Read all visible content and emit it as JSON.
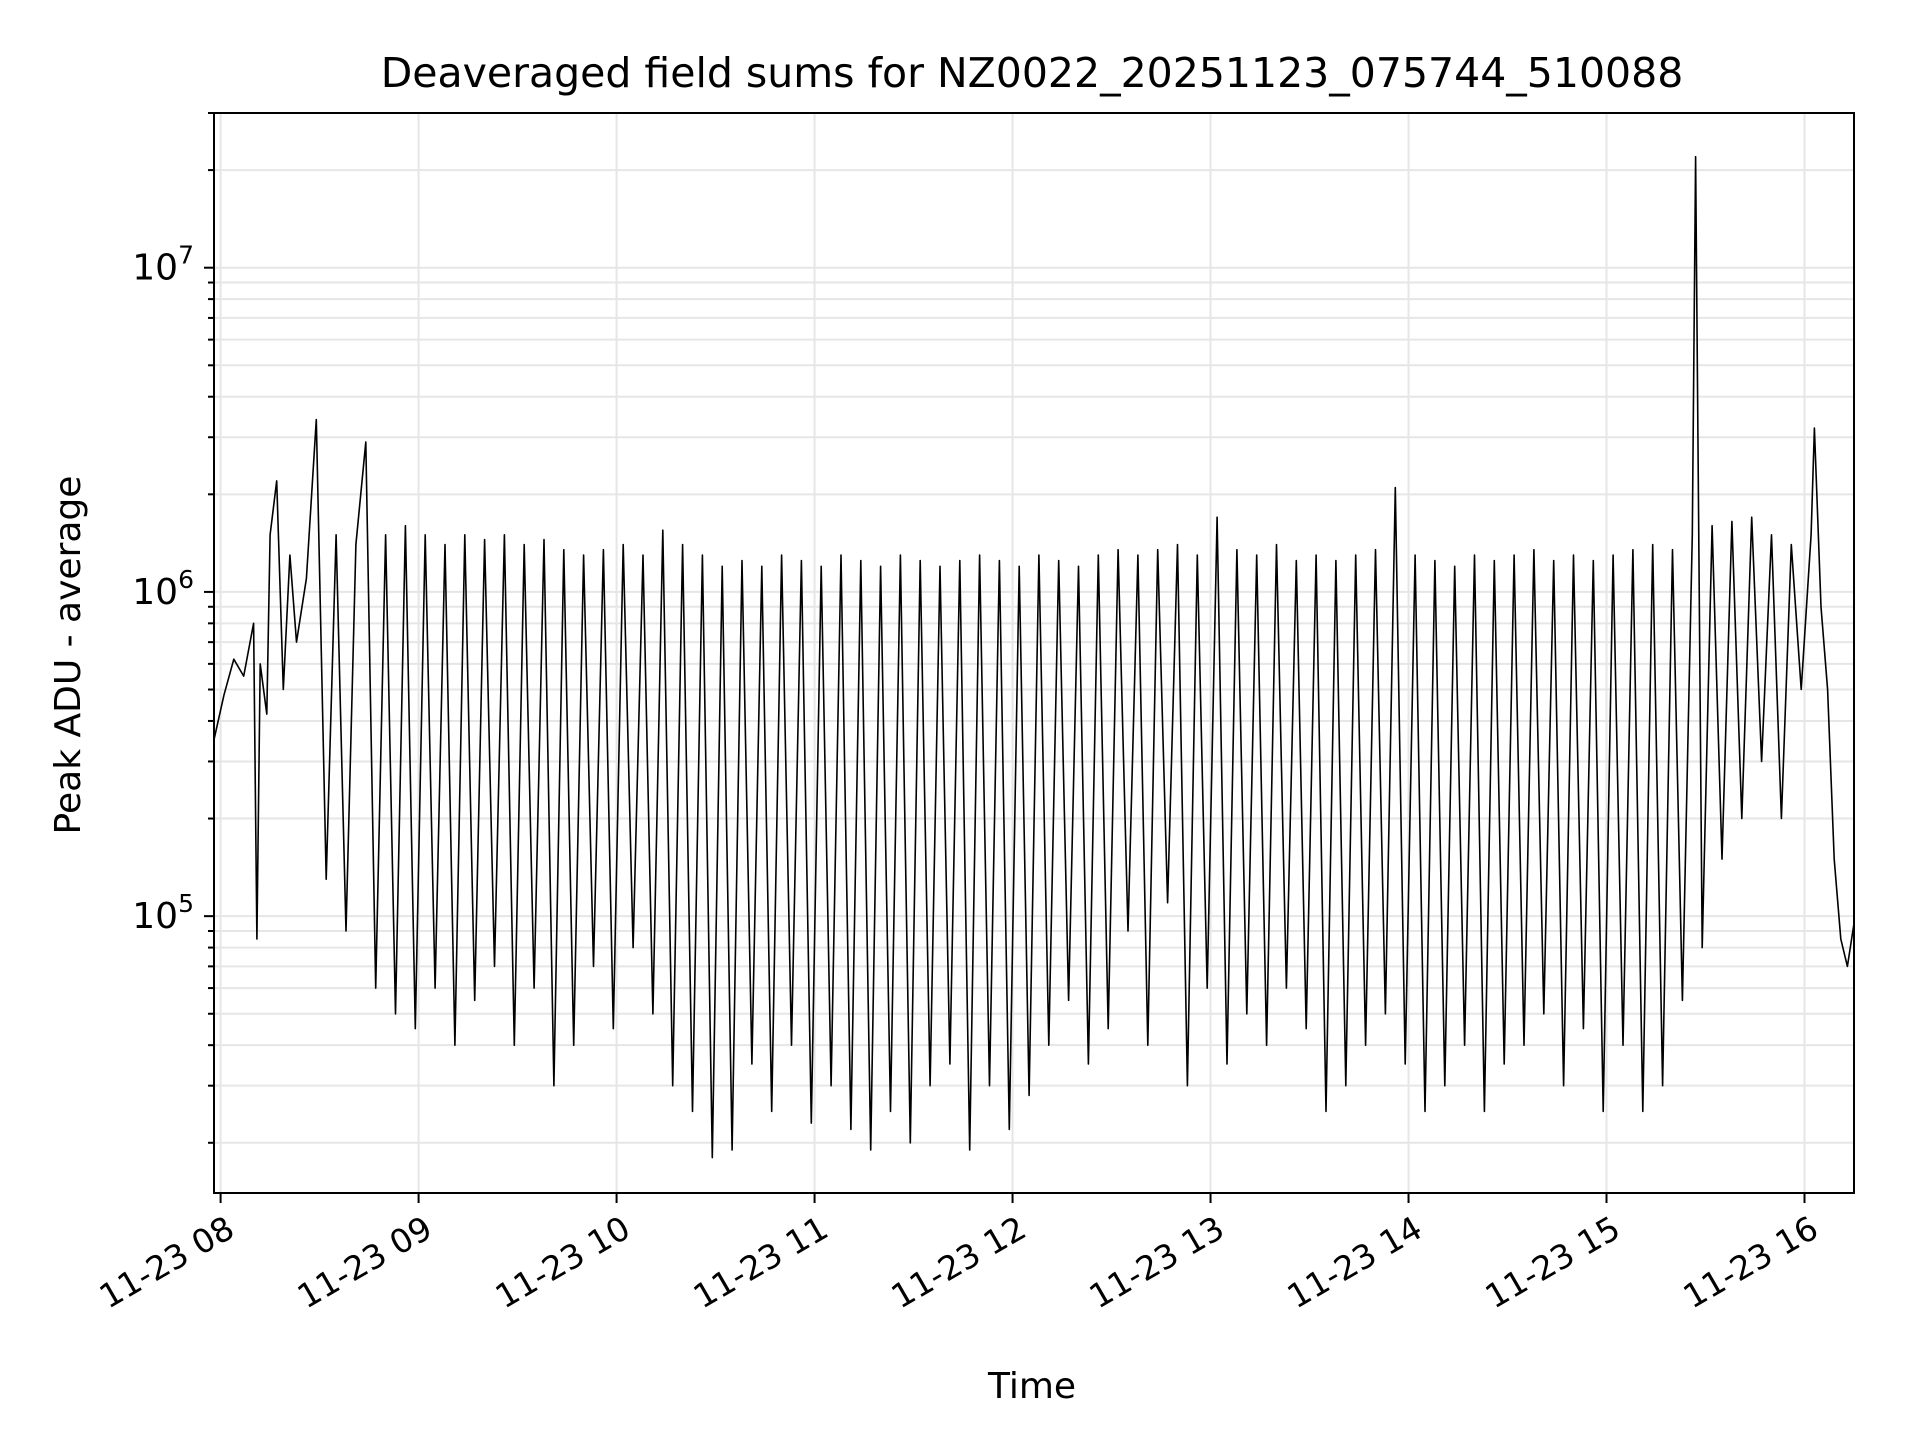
{
  "chart_data": {
    "type": "line",
    "title": "Deaveraged field sums for NZ0022_20251123_075744_510088",
    "xlabel": "Time",
    "ylabel": "Peak ADU - average",
    "yscale": "log",
    "ylim": [
      14000,
      30000000
    ],
    "xlim": [
      "2025-11-23 07:58",
      "2025-11-23 16:15"
    ],
    "grid": true,
    "line_color": "#000000",
    "grid_color": "#e6e6e6",
    "x_ticks": [
      {
        "label": "11-23 08",
        "time": "2025-11-23 08:00"
      },
      {
        "label": "11-23 09",
        "time": "2025-11-23 09:00"
      },
      {
        "label": "11-23 10",
        "time": "2025-11-23 10:00"
      },
      {
        "label": "11-23 11",
        "time": "2025-11-23 11:00"
      },
      {
        "label": "11-23 12",
        "time": "2025-11-23 12:00"
      },
      {
        "label": "11-23 13",
        "time": "2025-11-23 13:00"
      },
      {
        "label": "11-23 14",
        "time": "2025-11-23 14:00"
      },
      {
        "label": "11-23 15",
        "time": "2025-11-23 15:00"
      },
      {
        "label": "11-23 16",
        "time": "2025-11-23 16:00"
      }
    ],
    "y_ticks": [
      {
        "value": 100000,
        "mantissa": "10",
        "exponent": "5"
      },
      {
        "value": 1000000,
        "mantissa": "10",
        "exponent": "6"
      },
      {
        "value": 10000000,
        "mantissa": "10",
        "exponent": "7"
      }
    ],
    "series": [
      {
        "x": [
          "2025-11-23 07:58",
          "2025-11-23 08:01",
          "2025-11-23 08:04",
          "2025-11-23 08:07",
          "2025-11-23 08:10",
          "2025-11-23 08:11",
          "2025-11-23 08:12",
          "2025-11-23 08:14",
          "2025-11-23 08:15",
          "2025-11-23 08:17",
          "2025-11-23 08:19",
          "2025-11-23 08:21",
          "2025-11-23 08:23",
          "2025-11-23 08:26",
          "2025-11-23 08:29",
          "2025-11-23 08:32",
          "2025-11-23 08:35",
          "2025-11-23 08:38",
          "2025-11-23 08:41",
          "2025-11-23 08:44",
          "2025-11-23 08:47",
          "2025-11-23 08:50",
          "2025-11-23 08:53",
          "2025-11-23 08:56",
          "2025-11-23 08:59",
          "2025-11-23 09:02",
          "2025-11-23 09:05",
          "2025-11-23 09:08",
          "2025-11-23 09:11",
          "2025-11-23 09:14",
          "2025-11-23 09:17",
          "2025-11-23 09:20",
          "2025-11-23 09:23",
          "2025-11-23 09:26",
          "2025-11-23 09:29",
          "2025-11-23 09:32",
          "2025-11-23 09:35",
          "2025-11-23 09:38",
          "2025-11-23 09:41",
          "2025-11-23 09:44",
          "2025-11-23 09:47",
          "2025-11-23 09:50",
          "2025-11-23 09:53",
          "2025-11-23 09:56",
          "2025-11-23 09:59",
          "2025-11-23 10:02",
          "2025-11-23 10:05",
          "2025-11-23 10:08",
          "2025-11-23 10:11",
          "2025-11-23 10:14",
          "2025-11-23 10:17",
          "2025-11-23 10:20",
          "2025-11-23 10:23",
          "2025-11-23 10:26",
          "2025-11-23 10:29",
          "2025-11-23 10:32",
          "2025-11-23 10:35",
          "2025-11-23 10:38",
          "2025-11-23 10:41",
          "2025-11-23 10:44",
          "2025-11-23 10:47",
          "2025-11-23 10:50",
          "2025-11-23 10:53",
          "2025-11-23 10:56",
          "2025-11-23 10:59",
          "2025-11-23 11:02",
          "2025-11-23 11:05",
          "2025-11-23 11:08",
          "2025-11-23 11:11",
          "2025-11-23 11:14",
          "2025-11-23 11:17",
          "2025-11-23 11:20",
          "2025-11-23 11:23",
          "2025-11-23 11:26",
          "2025-11-23 11:29",
          "2025-11-23 11:32",
          "2025-11-23 11:35",
          "2025-11-23 11:38",
          "2025-11-23 11:41",
          "2025-11-23 11:44",
          "2025-11-23 11:47",
          "2025-11-23 11:50",
          "2025-11-23 11:53",
          "2025-11-23 11:56",
          "2025-11-23 11:59",
          "2025-11-23 12:02",
          "2025-11-23 12:05",
          "2025-11-23 12:08",
          "2025-11-23 12:11",
          "2025-11-23 12:14",
          "2025-11-23 12:17",
          "2025-11-23 12:20",
          "2025-11-23 12:23",
          "2025-11-23 12:26",
          "2025-11-23 12:29",
          "2025-11-23 12:32",
          "2025-11-23 12:35",
          "2025-11-23 12:38",
          "2025-11-23 12:41",
          "2025-11-23 12:44",
          "2025-11-23 12:47",
          "2025-11-23 12:50",
          "2025-11-23 12:53",
          "2025-11-23 12:56",
          "2025-11-23 12:59",
          "2025-11-23 13:02",
          "2025-11-23 13:05",
          "2025-11-23 13:08",
          "2025-11-23 13:11",
          "2025-11-23 13:14",
          "2025-11-23 13:17",
          "2025-11-23 13:20",
          "2025-11-23 13:23",
          "2025-11-23 13:26",
          "2025-11-23 13:29",
          "2025-11-23 13:32",
          "2025-11-23 13:35",
          "2025-11-23 13:38",
          "2025-11-23 13:41",
          "2025-11-23 13:44",
          "2025-11-23 13:47",
          "2025-11-23 13:50",
          "2025-11-23 13:53",
          "2025-11-23 13:56",
          "2025-11-23 13:59",
          "2025-11-23 14:02",
          "2025-11-23 14:05",
          "2025-11-23 14:08",
          "2025-11-23 14:11",
          "2025-11-23 14:14",
          "2025-11-23 14:17",
          "2025-11-23 14:20",
          "2025-11-23 14:23",
          "2025-11-23 14:26",
          "2025-11-23 14:29",
          "2025-11-23 14:32",
          "2025-11-23 14:35",
          "2025-11-23 14:38",
          "2025-11-23 14:41",
          "2025-11-23 14:44",
          "2025-11-23 14:47",
          "2025-11-23 14:50",
          "2025-11-23 14:53",
          "2025-11-23 14:56",
          "2025-11-23 14:59",
          "2025-11-23 15:02",
          "2025-11-23 15:05",
          "2025-11-23 15:08",
          "2025-11-23 15:11",
          "2025-11-23 15:14",
          "2025-11-23 15:17",
          "2025-11-23 15:20",
          "2025-11-23 15:23",
          "2025-11-23 15:26",
          "2025-11-23 15:27",
          "2025-11-23 15:29",
          "2025-11-23 15:32",
          "2025-11-23 15:35",
          "2025-11-23 15:38",
          "2025-11-23 15:41",
          "2025-11-23 15:44",
          "2025-11-23 15:47",
          "2025-11-23 15:50",
          "2025-11-23 15:53",
          "2025-11-23 15:56",
          "2025-11-23 15:59",
          "2025-11-23 16:02",
          "2025-11-23 16:03",
          "2025-11-23 16:05",
          "2025-11-23 16:07",
          "2025-11-23 16:09",
          "2025-11-23 16:11",
          "2025-11-23 16:13",
          "2025-11-23 16:15"
        ],
        "values": [
          350000,
          480000,
          620000,
          550000,
          800000,
          85000,
          600000,
          420000,
          1500000,
          2200000,
          500000,
          1300000,
          700000,
          1100000,
          3400000,
          130000,
          1500000,
          90000,
          1400000,
          2900000,
          60000,
          1500000,
          50000,
          1600000,
          45000,
          1500000,
          60000,
          1400000,
          40000,
          1500000,
          55000,
          1450000,
          70000,
          1500000,
          40000,
          1400000,
          60000,
          1450000,
          30000,
          1350000,
          40000,
          1300000,
          70000,
          1350000,
          45000,
          1400000,
          80000,
          1300000,
          50000,
          1550000,
          30000,
          1400000,
          25000,
          1300000,
          18000,
          1200000,
          19000,
          1250000,
          35000,
          1200000,
          25000,
          1300000,
          40000,
          1250000,
          23000,
          1200000,
          30000,
          1300000,
          22000,
          1250000,
          19000,
          1200000,
          25000,
          1300000,
          20000,
          1250000,
          30000,
          1200000,
          35000,
          1250000,
          19000,
          1300000,
          30000,
          1250000,
          22000,
          1200000,
          28000,
          1300000,
          40000,
          1250000,
          55000,
          1200000,
          35000,
          1300000,
          45000,
          1350000,
          90000,
          1300000,
          40000,
          1350000,
          110000,
          1400000,
          30000,
          1300000,
          60000,
          1700000,
          35000,
          1350000,
          50000,
          1300000,
          40000,
          1400000,
          60000,
          1250000,
          45000,
          1300000,
          25000,
          1250000,
          30000,
          1300000,
          40000,
          1350000,
          50000,
          2100000,
          35000,
          1300000,
          25000,
          1250000,
          30000,
          1200000,
          40000,
          1300000,
          25000,
          1250000,
          35000,
          1300000,
          40000,
          1350000,
          50000,
          1250000,
          30000,
          1300000,
          45000,
          1250000,
          25000,
          1300000,
          40000,
          1350000,
          25000,
          1400000,
          30000,
          1350000,
          55000,
          1500000,
          22000000,
          80000,
          1600000,
          150000,
          1650000,
          200000,
          1700000,
          300000,
          1500000,
          200000,
          1400000,
          500000,
          1500000,
          3200000,
          900000,
          500000,
          150000,
          85000,
          70000,
          95000
        ]
      }
    ]
  }
}
